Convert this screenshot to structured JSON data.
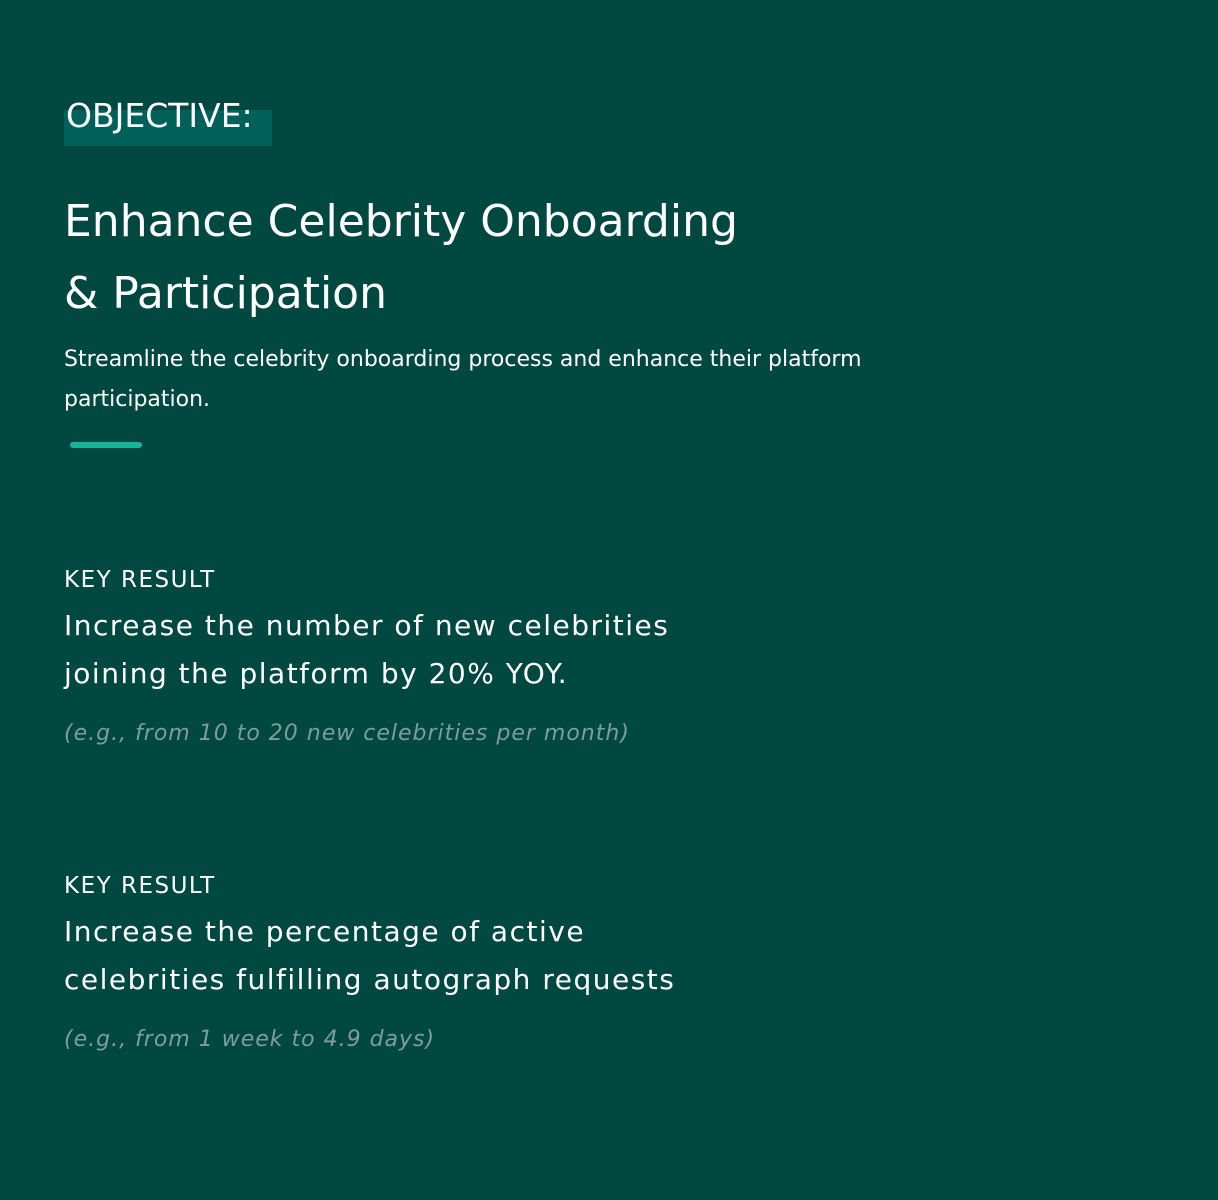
{
  "objective": {
    "tag": "OBJECTIVE:",
    "title_lines": [
      "Enhance Celebrity Onboarding",
      "& Participation"
    ],
    "subtitle_lines": [
      "Streamline the celebrity onboarding process and enhance their platform",
      "participation."
    ]
  },
  "key_results": [
    {
      "label": "KEY RESULT",
      "text_lines": [
        "Increase the number of new celebrities",
        "joining the platform by 20% YOY."
      ],
      "example": "(e.g., from 10 to 20 new celebrities per month)"
    },
    {
      "label": "KEY RESULT",
      "text_lines": [
        "Increase the percentage of active",
        "celebrities fulfilling autograph requests"
      ],
      "example": "(e.g., from 1 week to 4.9 days)"
    }
  ],
  "colors": {
    "background": "#014841",
    "tag_highlight": "#02605a",
    "accent": "#19b39a",
    "example_text": "#7f9e99"
  }
}
